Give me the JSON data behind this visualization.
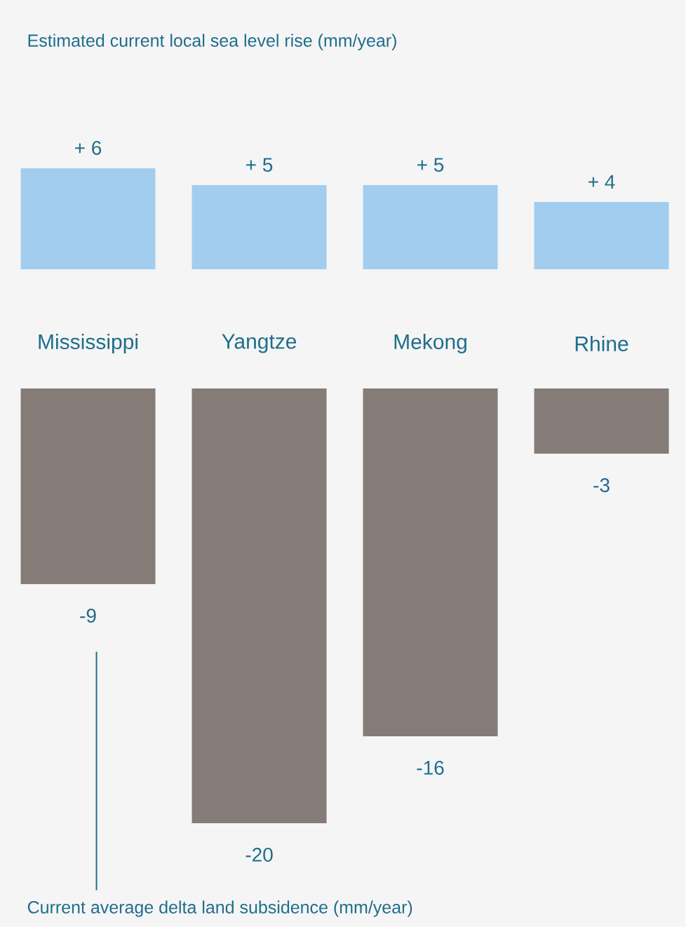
{
  "chart_data": [
    {
      "type": "bar",
      "title": "Estimated current local sea level rise (mm/year)",
      "categories": [
        "Mississippi",
        "Yangtze",
        "Mekong",
        "Rhine"
      ],
      "color": "#a3cdee",
      "values": [
        6,
        5,
        5,
        4
      ],
      "value_labels": [
        "+ 6",
        "+ 5",
        "+ 5",
        "+ 4"
      ]
    },
    {
      "type": "bar",
      "xlabel": "Current average delta land subsidence (mm/year)",
      "color": "#857b77",
      "values": [
        -9,
        -20,
        -16,
        -3
      ],
      "value_labels": [
        "-9",
        "-20",
        "-16",
        "-3"
      ]
    }
  ]
}
